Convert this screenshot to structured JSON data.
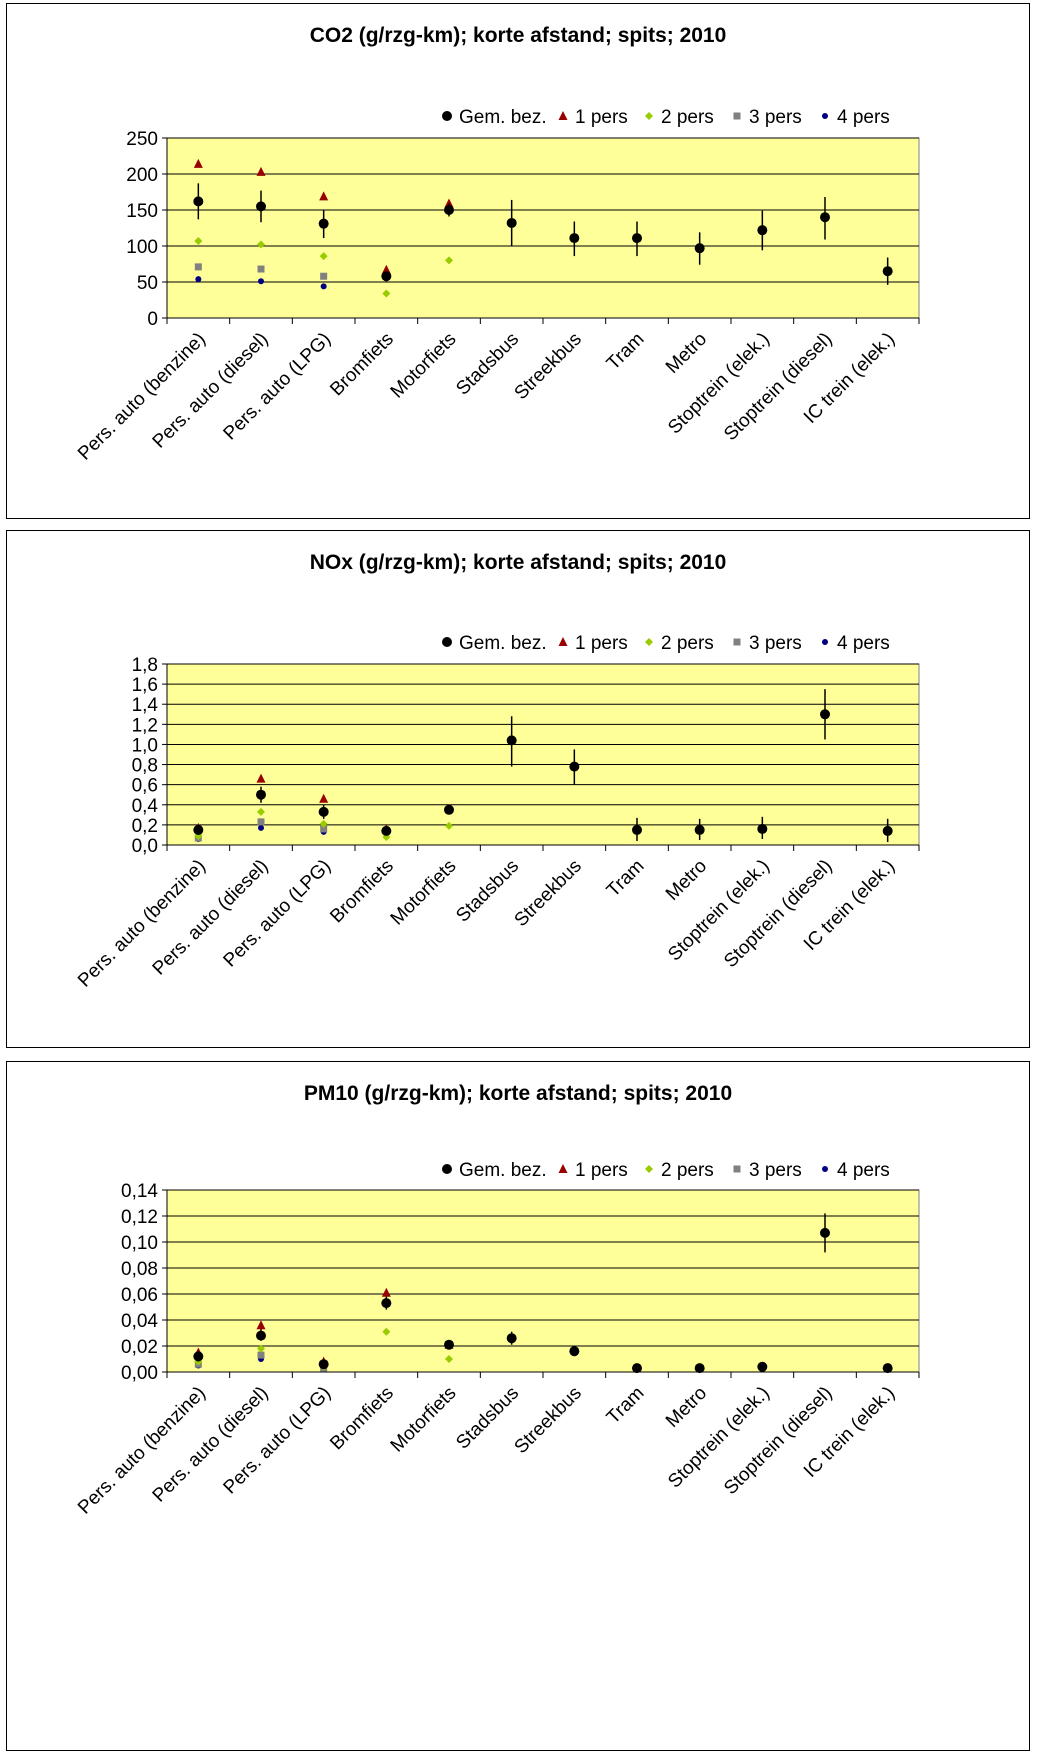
{
  "colors": {
    "plot_bg": "#FFFF99",
    "gem_bez": "#000000",
    "pers1": "#990000",
    "pers2": "#99CC00",
    "pers3": "#808080",
    "pers4": "#000080"
  },
  "legend": [
    "Gem. bez.",
    "1 pers",
    "2 pers",
    "3 pers",
    "4 pers"
  ],
  "categories": [
    "Pers. auto (benzine)",
    "Pers. auto (diesel)",
    "Pers. auto (LPG)",
    "Bromfiets",
    "Motorfiets",
    "Stadsbus",
    "Streekbus",
    "Tram",
    "Metro",
    "Stoptrein (elek.)",
    "Stoptrein (diesel)",
    "IC trein (elek.)"
  ],
  "chart_data": [
    {
      "type": "scatter",
      "title": "CO2 (g/rzg-km); korte afstand; spits; 2010",
      "ylim": [
        0,
        250
      ],
      "yticks": [
        "0",
        "50",
        "100",
        "150",
        "200",
        "250"
      ],
      "grid": true,
      "legend_position": "top-right",
      "series": [
        {
          "name": "Gem. bez.",
          "marker": "circle",
          "values": [
            162,
            155,
            131,
            58,
            150,
            132,
            111,
            111,
            97,
            122,
            140,
            65
          ],
          "err_low": [
            137,
            133,
            111,
            51,
            141,
            100,
            86,
            86,
            74,
            94,
            109,
            46
          ],
          "err_high": [
            187,
            177,
            150,
            65,
            159,
            164,
            134,
            134,
            119,
            149,
            168,
            84
          ]
        },
        {
          "name": "1 pers",
          "marker": "triangle",
          "values": [
            214,
            203,
            169,
            67,
            159,
            null,
            null,
            null,
            null,
            null,
            null,
            null
          ]
        },
        {
          "name": "2 pers",
          "marker": "diamond",
          "values": [
            107,
            102,
            86,
            34,
            80,
            null,
            null,
            null,
            null,
            null,
            null,
            null
          ]
        },
        {
          "name": "3 pers",
          "marker": "square",
          "values": [
            71,
            68,
            58,
            null,
            null,
            null,
            null,
            null,
            null,
            null,
            null,
            null
          ]
        },
        {
          "name": "4 pers",
          "marker": "dot",
          "values": [
            54,
            51,
            44,
            null,
            null,
            null,
            null,
            null,
            null,
            null,
            null,
            null
          ]
        }
      ]
    },
    {
      "type": "scatter",
      "title": "NOx (g/rzg-km); korte afstand; spits; 2010",
      "ylim": [
        0,
        1.8
      ],
      "yticks": [
        "0,0",
        "0,2",
        "0,4",
        "0,6",
        "0,8",
        "1,0",
        "1,2",
        "1,4",
        "1,6",
        "1,8"
      ],
      "grid": true,
      "legend_position": "top-right",
      "series": [
        {
          "name": "Gem. bez.",
          "marker": "circle",
          "values": [
            0.15,
            0.5,
            0.33,
            0.14,
            0.35,
            1.04,
            0.78,
            0.15,
            0.15,
            0.16,
            1.3,
            0.14
          ],
          "err_low": [
            0.1,
            0.42,
            0.26,
            0.11,
            0.32,
            0.78,
            0.6,
            0.04,
            0.05,
            0.06,
            1.05,
            0.03
          ],
          "err_high": [
            0.2,
            0.58,
            0.4,
            0.17,
            0.38,
            1.28,
            0.95,
            0.27,
            0.26,
            0.28,
            1.55,
            0.26
          ]
        },
        {
          "name": "1 pers",
          "marker": "triangle",
          "values": [
            0.17,
            0.66,
            0.46,
            0.16,
            0.36,
            null,
            null,
            null,
            null,
            null,
            null,
            null
          ]
        },
        {
          "name": "2 pers",
          "marker": "diamond",
          "values": [
            0.09,
            0.33,
            0.21,
            0.08,
            0.19,
            null,
            null,
            null,
            null,
            null,
            null,
            null
          ]
        },
        {
          "name": "3 pers",
          "marker": "square",
          "values": [
            0.07,
            0.23,
            0.16,
            null,
            null,
            null,
            null,
            null,
            null,
            null,
            null,
            null
          ]
        },
        {
          "name": "4 pers",
          "marker": "dot",
          "values": [
            0.06,
            0.17,
            0.13,
            null,
            null,
            null,
            null,
            null,
            null,
            null,
            null,
            null
          ]
        }
      ]
    },
    {
      "type": "scatter",
      "title": "PM10 (g/rzg-km); korte afstand; spits; 2010",
      "ylim": [
        0,
        0.14
      ],
      "yticks": [
        "0,00",
        "0,02",
        "0,04",
        "0,06",
        "0,08",
        "0,10",
        "0,12",
        "0,14"
      ],
      "grid": true,
      "legend_position": "top-right",
      "series": [
        {
          "name": "Gem. bez.",
          "marker": "circle",
          "values": [
            0.012,
            0.028,
            0.006,
            0.053,
            0.021,
            0.026,
            0.016,
            0.003,
            0.003,
            0.004,
            0.107,
            0.003
          ],
          "err_low": [
            0.008,
            0.024,
            0.004,
            0.048,
            0.019,
            0.021,
            0.013,
            0.002,
            0.002,
            0.003,
            0.092,
            0.002
          ],
          "err_high": [
            0.016,
            0.033,
            0.008,
            0.058,
            0.023,
            0.031,
            0.019,
            0.004,
            0.004,
            0.005,
            0.122,
            0.004
          ]
        },
        {
          "name": "1 pers",
          "marker": "triangle",
          "values": [
            0.015,
            0.036,
            0.008,
            0.061,
            0.021,
            null,
            null,
            null,
            null,
            null,
            null,
            null
          ]
        },
        {
          "name": "2 pers",
          "marker": "diamond",
          "values": [
            0.008,
            0.018,
            0.004,
            0.031,
            0.01,
            null,
            null,
            null,
            null,
            null,
            null,
            null
          ]
        },
        {
          "name": "3 pers",
          "marker": "square",
          "values": [
            0.006,
            0.013,
            0.003,
            null,
            null,
            null,
            null,
            null,
            null,
            null,
            null,
            null
          ]
        },
        {
          "name": "4 pers",
          "marker": "dot",
          "values": [
            0.005,
            0.01,
            0.003,
            null,
            null,
            null,
            null,
            null,
            null,
            null,
            null,
            null
          ]
        }
      ]
    }
  ]
}
